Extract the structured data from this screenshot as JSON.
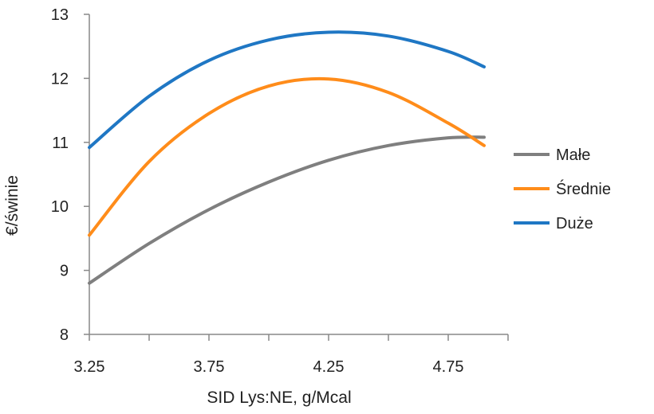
{
  "chart_data": {
    "type": "line",
    "title": "",
    "xlabel": "SID Lys:NE, g/Mcal",
    "ylabel": "€/świnie",
    "xlim": [
      3.25,
      5.0
    ],
    "ylim": [
      8,
      13
    ],
    "xticks": [
      3.25,
      3.75,
      4.25,
      4.75
    ],
    "xtick_labels": [
      "3.25",
      "3.75",
      "4.25",
      "4.75"
    ],
    "xminor_ticks": [
      3.5,
      4.0,
      4.5,
      5.0
    ],
    "yticks": [
      8,
      9,
      10,
      11,
      12,
      13
    ],
    "ytick_labels": [
      "8",
      "9",
      "10",
      "11",
      "12",
      "13"
    ],
    "grid": false,
    "legend_position": "right",
    "series": [
      {
        "name": "Małe",
        "color": "#7f7f7f",
        "x": [
          3.25,
          3.5,
          3.75,
          4.0,
          4.25,
          4.5,
          4.75,
          4.9
        ],
        "y": [
          8.8,
          9.42,
          9.95,
          10.38,
          10.72,
          10.95,
          11.07,
          11.08
        ]
      },
      {
        "name": "Średnie",
        "color": "#ff8c1a",
        "x": [
          3.25,
          3.5,
          3.75,
          4.0,
          4.25,
          4.5,
          4.75,
          4.9
        ],
        "y": [
          9.55,
          10.7,
          11.45,
          11.88,
          11.99,
          11.78,
          11.3,
          10.95
        ]
      },
      {
        "name": "Duże",
        "color": "#1f77c4",
        "x": [
          3.25,
          3.5,
          3.75,
          4.0,
          4.25,
          4.5,
          4.75,
          4.9
        ],
        "y": [
          10.92,
          11.72,
          12.28,
          12.6,
          12.72,
          12.66,
          12.42,
          12.18
        ]
      }
    ]
  }
}
